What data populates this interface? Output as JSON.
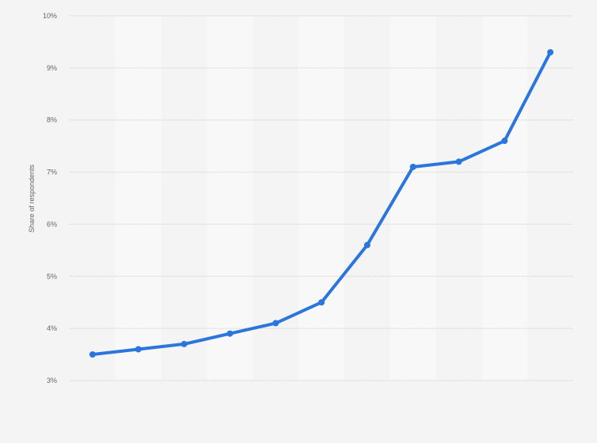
{
  "chart_data": {
    "type": "line",
    "title": "",
    "xlabel": "",
    "ylabel": "Share of respondents",
    "ylim": [
      3,
      10
    ],
    "y_unit": "%",
    "y_ticks": [
      "3%",
      "4%",
      "5%",
      "6%",
      "7%",
      "8%",
      "9%",
      "10%"
    ],
    "x_tick_labels_visible": false,
    "grid": "horizontal dotted",
    "series": [
      {
        "values": [
          3.5,
          3.6,
          3.7,
          3.9,
          4.1,
          4.5,
          5.6,
          7.1,
          7.2,
          7.6,
          9.3
        ]
      }
    ],
    "colors": {
      "line": "#2a76dd",
      "background": "#f4f4f4",
      "band": "#f8f8f8",
      "grid": "#cccccc"
    }
  }
}
